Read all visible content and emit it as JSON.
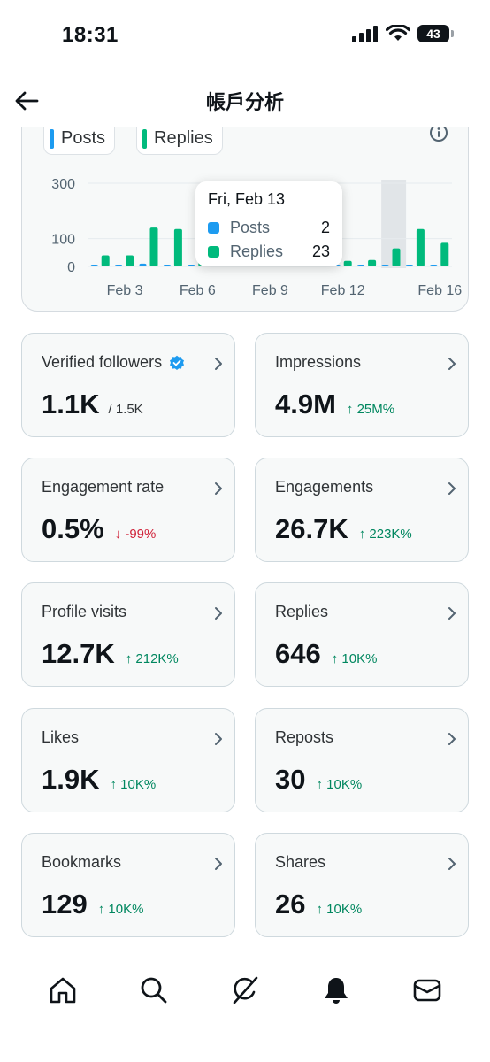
{
  "status_bar": {
    "time": "18:31",
    "battery": "43"
  },
  "header": {
    "title": "帳戶分析"
  },
  "chart_data": {
    "type": "bar",
    "legend": [
      "Posts",
      "Replies"
    ],
    "colors": {
      "posts": "#1d9bf0",
      "replies": "#00ba7c"
    },
    "y_ticks": [
      "300",
      "100",
      "0"
    ],
    "x_ticks": [
      "Feb 3",
      "Feb 6",
      "Feb 9",
      "Feb 12",
      "Feb 16"
    ],
    "ylim": [
      0,
      320
    ],
    "categories": [
      "Feb 2",
      "Feb 3",
      "Feb 4",
      "Feb 5",
      "Feb 6",
      "Feb 7",
      "Feb 8",
      "Feb 9",
      "Feb 10",
      "Feb 11",
      "Feb 12",
      "Feb 13",
      "Feb 14",
      "Feb 15",
      "Feb 16"
    ],
    "series": [
      {
        "name": "Posts",
        "values": [
          2,
          2,
          10,
          2,
          2,
          2,
          2,
          2,
          2,
          2,
          2,
          2,
          2,
          2,
          2
        ]
      },
      {
        "name": "Replies",
        "values": [
          40,
          40,
          140,
          135,
          20,
          20,
          20,
          20,
          20,
          20,
          20,
          23,
          65,
          135,
          85
        ]
      }
    ],
    "highlight_index": 11,
    "tooltip": {
      "title": "Fri, Feb 13",
      "rows": [
        {
          "label": "Posts",
          "value": "2"
        },
        {
          "label": "Replies",
          "value": "23"
        }
      ]
    }
  },
  "metrics": [
    {
      "label": "Verified followers",
      "value": "1.1K",
      "sub": "/ 1.5K",
      "change": "",
      "direction": "",
      "verified_icon": true
    },
    {
      "label": "Impressions",
      "value": "4.9M",
      "sub": "",
      "change": "↑ 25M%",
      "direction": "up"
    },
    {
      "label": "Engagement rate",
      "value": "0.5%",
      "sub": "",
      "change": "↓ -99%",
      "direction": "down"
    },
    {
      "label": "Engagements",
      "value": "26.7K",
      "sub": "",
      "change": "↑ 223K%",
      "direction": "up"
    },
    {
      "label": "Profile visits",
      "value": "12.7K",
      "sub": "",
      "change": "↑ 212K%",
      "direction": "up"
    },
    {
      "label": "Replies",
      "value": "646",
      "sub": "",
      "change": "↑ 10K%",
      "direction": "up"
    },
    {
      "label": "Likes",
      "value": "1.9K",
      "sub": "",
      "change": "↑ 10K%",
      "direction": "up"
    },
    {
      "label": "Reposts",
      "value": "30",
      "sub": "",
      "change": "↑ 10K%",
      "direction": "up"
    },
    {
      "label": "Bookmarks",
      "value": "129",
      "sub": "",
      "change": "↑ 10K%",
      "direction": "up"
    },
    {
      "label": "Shares",
      "value": "26",
      "sub": "",
      "change": "↑ 10K%",
      "direction": "up"
    }
  ],
  "tabs": [
    {
      "icon": "home-icon"
    },
    {
      "icon": "search-icon"
    },
    {
      "icon": "grok-icon"
    },
    {
      "icon": "notifications-icon"
    },
    {
      "icon": "messages-icon"
    }
  ]
}
